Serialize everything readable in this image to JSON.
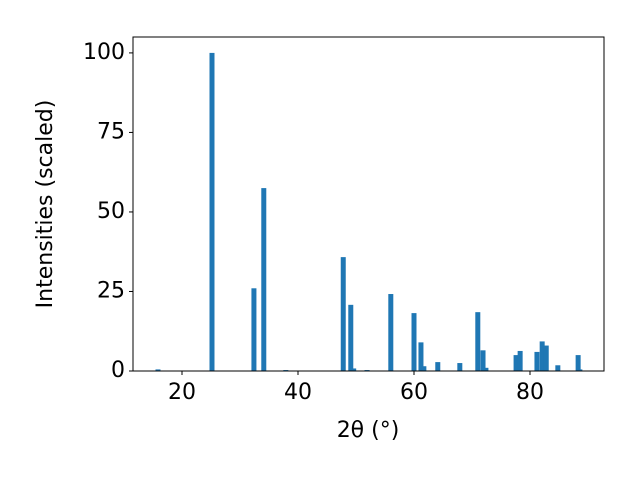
{
  "chart_data": {
    "type": "bar",
    "xlabel": "2θ (°)",
    "ylabel": "Intensities (scaled)",
    "x": [
      15.86,
      25.17,
      32.4,
      34.1,
      37.9,
      47.8,
      49.1,
      49.6,
      51.9,
      56.0,
      60.0,
      61.2,
      61.7,
      64.1,
      67.9,
      71.0,
      71.9,
      72.4,
      77.6,
      78.3,
      81.2,
      82.1,
      82.8,
      84.8,
      88.3,
      88.6
    ],
    "values": [
      0.5,
      100,
      26,
      57.5,
      0.3,
      35.8,
      20.8,
      0.8,
      0.3,
      24.2,
      18.2,
      9.0,
      1.5,
      2.8,
      2.5,
      18.5,
      6.5,
      1.0,
      5.0,
      6.3,
      6.0,
      9.3,
      8.0,
      1.8,
      5.0,
      0.5
    ],
    "color": "#1f77b4",
    "xlim": [
      11.55,
      92.76
    ],
    "xticks": [
      20,
      40,
      60,
      80
    ],
    "ylim": [
      0,
      105
    ],
    "yticks": [
      0,
      25,
      50,
      75,
      100
    ],
    "grid": false
  }
}
